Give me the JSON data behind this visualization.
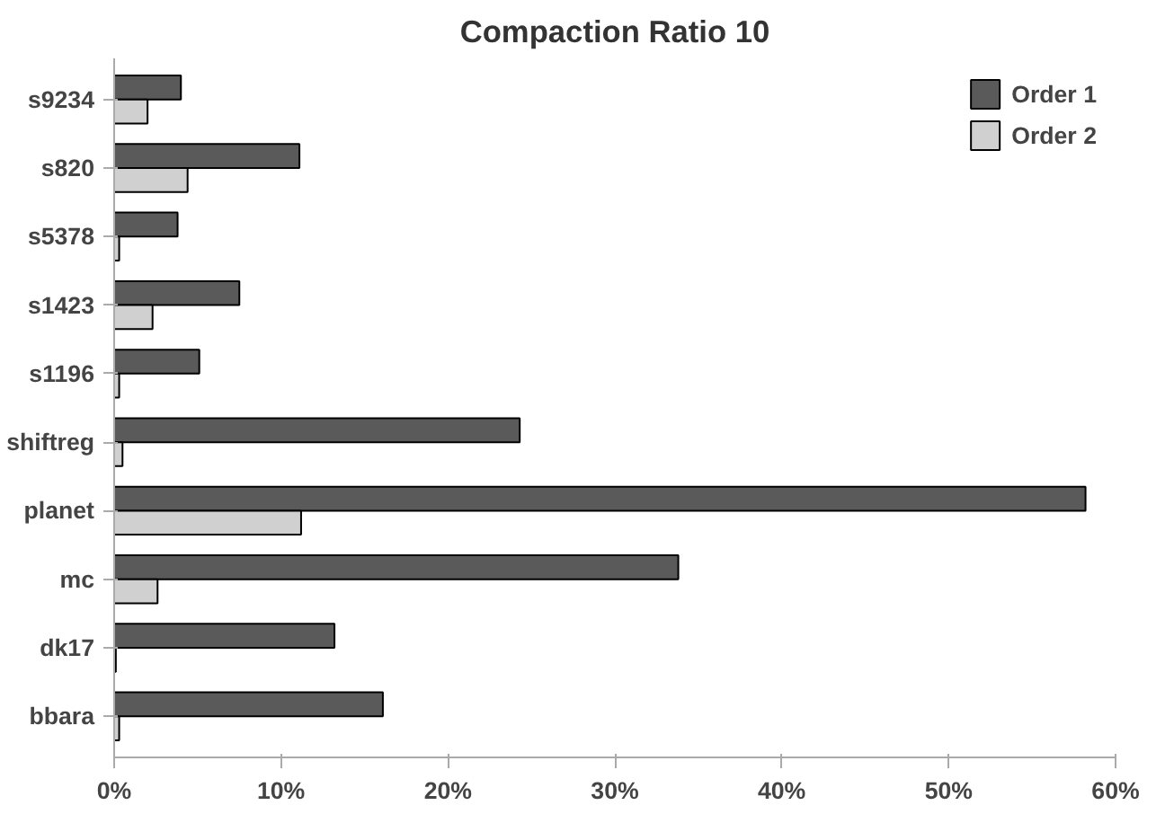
{
  "chart_data": {
    "type": "bar",
    "orientation": "horizontal",
    "title": "Compaction Ratio 10",
    "categories": [
      "s9234",
      "s820",
      "s5378",
      "s1423",
      "s1196",
      "shiftreg",
      "planet",
      "mc",
      "dk17",
      "bbara"
    ],
    "series": [
      {
        "name": "Order 1",
        "color": "#5a5a5a",
        "values": [
          4.0,
          11.1,
          3.8,
          7.5,
          5.1,
          24.3,
          58.2,
          33.8,
          13.2,
          16.1
        ]
      },
      {
        "name": "Order 2",
        "color": "#d0d0d0",
        "values": [
          2.0,
          4.4,
          0.3,
          2.3,
          0.3,
          0.5,
          11.2,
          2.6,
          0.1,
          0.3
        ]
      }
    ],
    "xlim": [
      0,
      60
    ],
    "xticks": [
      {
        "value": 0,
        "label": "0%"
      },
      {
        "value": 10,
        "label": "10%"
      },
      {
        "value": 20,
        "label": "20%"
      },
      {
        "value": 30,
        "label": "30%"
      },
      {
        "value": 40,
        "label": "40%"
      },
      {
        "value": 50,
        "label": "50%"
      },
      {
        "value": 60,
        "label": "60%"
      }
    ],
    "grid": false,
    "legend": "top right"
  }
}
